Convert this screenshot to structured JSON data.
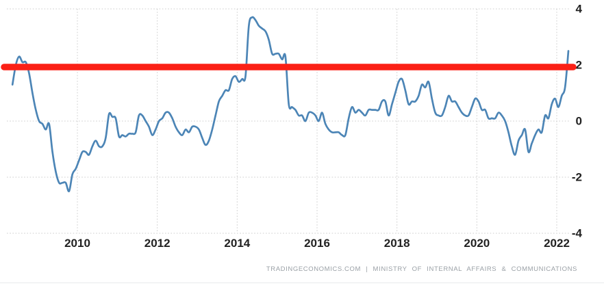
{
  "chart_data": {
    "type": "line",
    "x_range": [
      2008.234,
      2022.343
    ],
    "y_range": [
      -4,
      4
    ],
    "x_ticks": [
      2010,
      2012,
      2014,
      2016,
      2018,
      2020,
      2022
    ],
    "y_ticks": [
      4,
      2,
      0,
      -2,
      -4
    ],
    "grid": "dotted",
    "grid_color": "#cccccc",
    "line_color": "#4c85b6",
    "reference_line": {
      "value": 2,
      "color": "#fb2016",
      "thickness": 9.5
    },
    "series": [
      {
        "frequency": "monthly",
        "start_year": 2008,
        "start_month": 5,
        "values": [
          1.3,
          2.0,
          2.3,
          2.1,
          2.1,
          1.7,
          1.0,
          0.4,
          0.0,
          -0.1,
          -0.3,
          -0.1,
          -1.1,
          -1.8,
          -2.2,
          -2.2,
          -2.2,
          -2.5,
          -1.9,
          -1.7,
          -1.4,
          -1.1,
          -1.1,
          -1.2,
          -0.9,
          -0.7,
          -0.9,
          -0.9,
          -0.6,
          0.25,
          0.15,
          0.1,
          -0.55,
          -0.5,
          -0.55,
          -0.45,
          -0.45,
          -0.4,
          0.2,
          0.2,
          0.0,
          -0.2,
          -0.5,
          -0.3,
          0.0,
          0.1,
          0.3,
          0.3,
          0.1,
          -0.2,
          -0.4,
          -0.5,
          -0.3,
          -0.4,
          -0.2,
          -0.2,
          -0.3,
          -0.6,
          -0.85,
          -0.7,
          -0.3,
          0.2,
          0.7,
          0.9,
          1.1,
          1.1,
          1.5,
          1.6,
          1.4,
          1.5,
          1.6,
          3.4,
          3.7,
          3.6,
          3.4,
          3.3,
          3.2,
          2.9,
          2.4,
          2.4,
          2.4,
          2.2,
          2.3,
          0.6,
          0.5,
          0.4,
          0.2,
          0.2,
          0.0,
          0.3,
          0.3,
          0.2,
          0.0,
          0.3,
          -0.1,
          -0.3,
          -0.4,
          -0.4,
          -0.4,
          -0.5,
          -0.5,
          0.1,
          0.5,
          0.3,
          0.4,
          0.3,
          0.2,
          0.4,
          0.4,
          0.4,
          0.4,
          0.7,
          0.7,
          0.2,
          0.6,
          1.0,
          1.4,
          1.5,
          1.1,
          0.6,
          0.7,
          0.7,
          0.9,
          1.3,
          1.2,
          1.4,
          0.8,
          0.3,
          0.2,
          0.2,
          0.5,
          0.9,
          0.7,
          0.7,
          0.5,
          0.3,
          0.2,
          0.2,
          0.5,
          0.8,
          0.7,
          0.4,
          0.4,
          0.1,
          0.1,
          0.1,
          0.3,
          0.2,
          0.0,
          -0.4,
          -0.9,
          -1.2,
          -0.7,
          -0.5,
          -0.3,
          -1.1,
          -0.8,
          -0.5,
          -0.3,
          -0.4,
          0.2,
          0.1,
          0.6,
          0.8,
          0.5,
          0.9,
          1.2,
          2.5
        ]
      }
    ]
  },
  "attribution": {
    "text": "TRADINGECONOMICS.COM | MINISTRY OF INTERNAL AFFAIRS & COMMUNICATIONS"
  }
}
